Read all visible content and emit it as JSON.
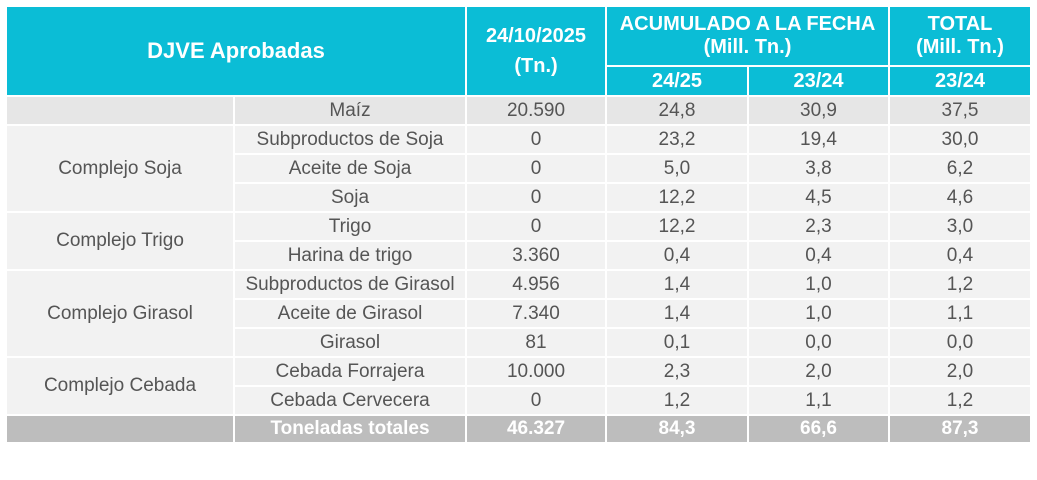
{
  "table": {
    "header": {
      "title": "DJVE Aprobadas",
      "date": "24/10/2025",
      "date_unit": "(Tn.)",
      "accumulated": "ACUMULADO A LA FECHA",
      "accumulated_unit": "(Mill. Tn.)",
      "total": "TOTAL",
      "total_unit": "(Mill. Tn.)",
      "subheaders": [
        "24/25",
        "23/24",
        "23/24"
      ]
    },
    "groups": [
      {
        "rows": [
          {
            "product": "Maíz",
            "values": [
              "20.590",
              "24,8",
              "30,9",
              "37,5"
            ]
          }
        ]
      },
      {
        "label": "Complejo Soja",
        "rows": [
          {
            "product": "Subproductos de Soja",
            "values": [
              "0",
              "23,2",
              "19,4",
              "30,0"
            ]
          },
          {
            "product": "Aceite de Soja",
            "values": [
              "0",
              "5,0",
              "3,8",
              "6,2"
            ]
          },
          {
            "product": "Soja",
            "values": [
              "0",
              "12,2",
              "4,5",
              "4,6"
            ]
          }
        ]
      },
      {
        "label": "Complejo Trigo",
        "rows": [
          {
            "product": "Trigo",
            "values": [
              "0",
              "12,2",
              "2,3",
              "3,0"
            ]
          },
          {
            "product": "Harina de trigo",
            "values": [
              "3.360",
              "0,4",
              "0,4",
              "0,4"
            ]
          }
        ]
      },
      {
        "label": "Complejo Girasol",
        "rows": [
          {
            "product": "Subproductos de Girasol",
            "values": [
              "4.956",
              "1,4",
              "1,0",
              "1,2"
            ]
          },
          {
            "product": "Aceite de Girasol",
            "values": [
              "7.340",
              "1,4",
              "1,0",
              "1,1"
            ]
          },
          {
            "product": "Girasol",
            "values": [
              "81",
              "0,1",
              "0,0",
              "0,0"
            ]
          }
        ]
      },
      {
        "label": "Complejo Cebada",
        "rows": [
          {
            "product": "Cebada Forrajera",
            "values": [
              "10.000",
              "2,3",
              "2,0",
              "2,0"
            ]
          },
          {
            "product": "Cebada Cervecera",
            "values": [
              "0",
              "1,2",
              "1,1",
              "1,2"
            ]
          }
        ]
      }
    ],
    "footer": {
      "label": "Toneladas totales",
      "values": [
        "46.327",
        "84,3",
        "66,6",
        "87,3"
      ]
    }
  }
}
